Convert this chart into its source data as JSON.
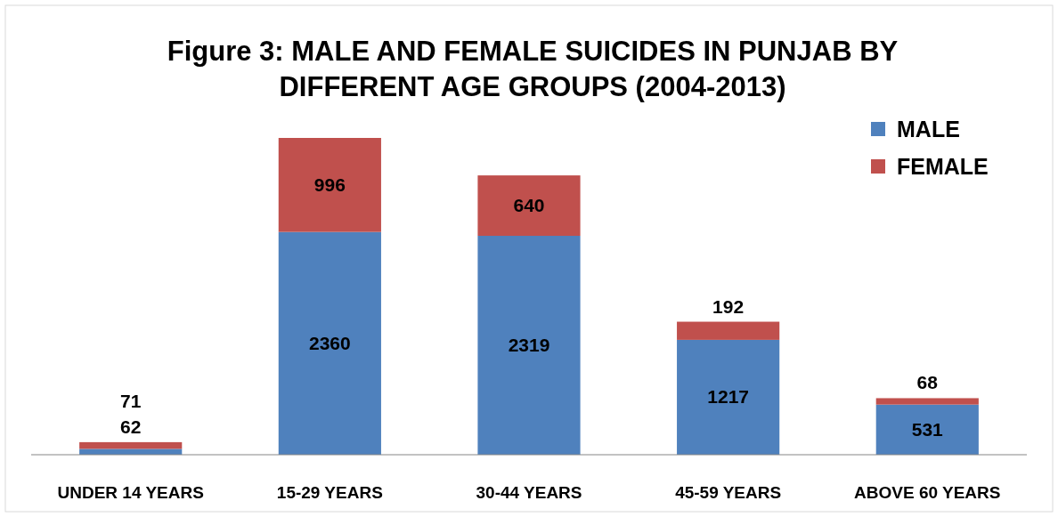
{
  "chart_data": {
    "type": "bar",
    "title": "Figure 3: MALE AND FEMALE SUICIDES IN PUNJAB BY DIFFERENT AGE GROUPS (2004-2013)",
    "categories": [
      "UNDER 14 YEARS",
      "15-29 YEARS",
      "30-44 YEARS",
      "45-59 YEARS",
      "ABOVE 60 YEARS"
    ],
    "stacked": true,
    "data_labels": true,
    "legend": "top right",
    "grid": false,
    "series": [
      {
        "name": "MALE",
        "color": "#4f81bd",
        "values": [
          62,
          2360,
          2319,
          1217,
          531
        ]
      },
      {
        "name": "FEMALE",
        "color": "#c0504d",
        "values": [
          71,
          996,
          640,
          192,
          68
        ]
      }
    ]
  }
}
